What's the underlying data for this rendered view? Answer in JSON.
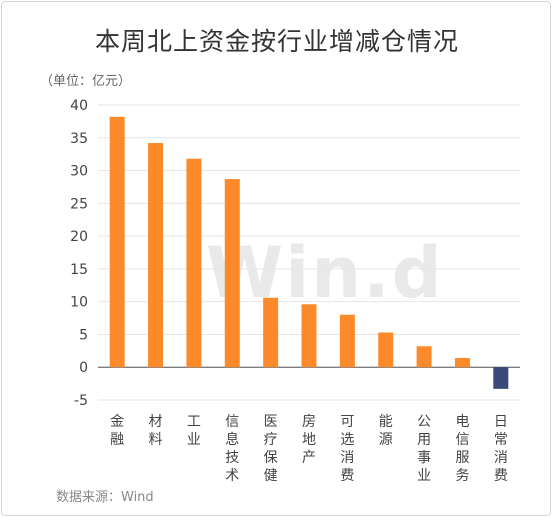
{
  "title": "本周北上资金按行业增减仓情况",
  "unit_label": "（单位：亿元）",
  "source": "数据来源：Wind",
  "watermark": "Win.d",
  "colors": {
    "positive": "#fc8a2a",
    "negative": "#3a4a7a",
    "grid": "#e6e6e6",
    "axis": "#555555"
  },
  "chart_data": {
    "type": "bar",
    "categories": [
      "金融",
      "材料",
      "工业",
      "信息技术",
      "医疗保健",
      "房地产",
      "可选消费",
      "能源",
      "公用事业",
      "电信服务",
      "日常消费"
    ],
    "values": [
      38.2,
      34.2,
      31.8,
      28.7,
      10.6,
      9.6,
      8.0,
      5.3,
      3.2,
      1.4,
      -3.3
    ],
    "ylim": [
      -5,
      40
    ],
    "yticks": [
      40,
      35,
      30,
      25,
      20,
      15,
      10,
      5,
      0,
      -5
    ],
    "grid": true,
    "legend": "none"
  }
}
